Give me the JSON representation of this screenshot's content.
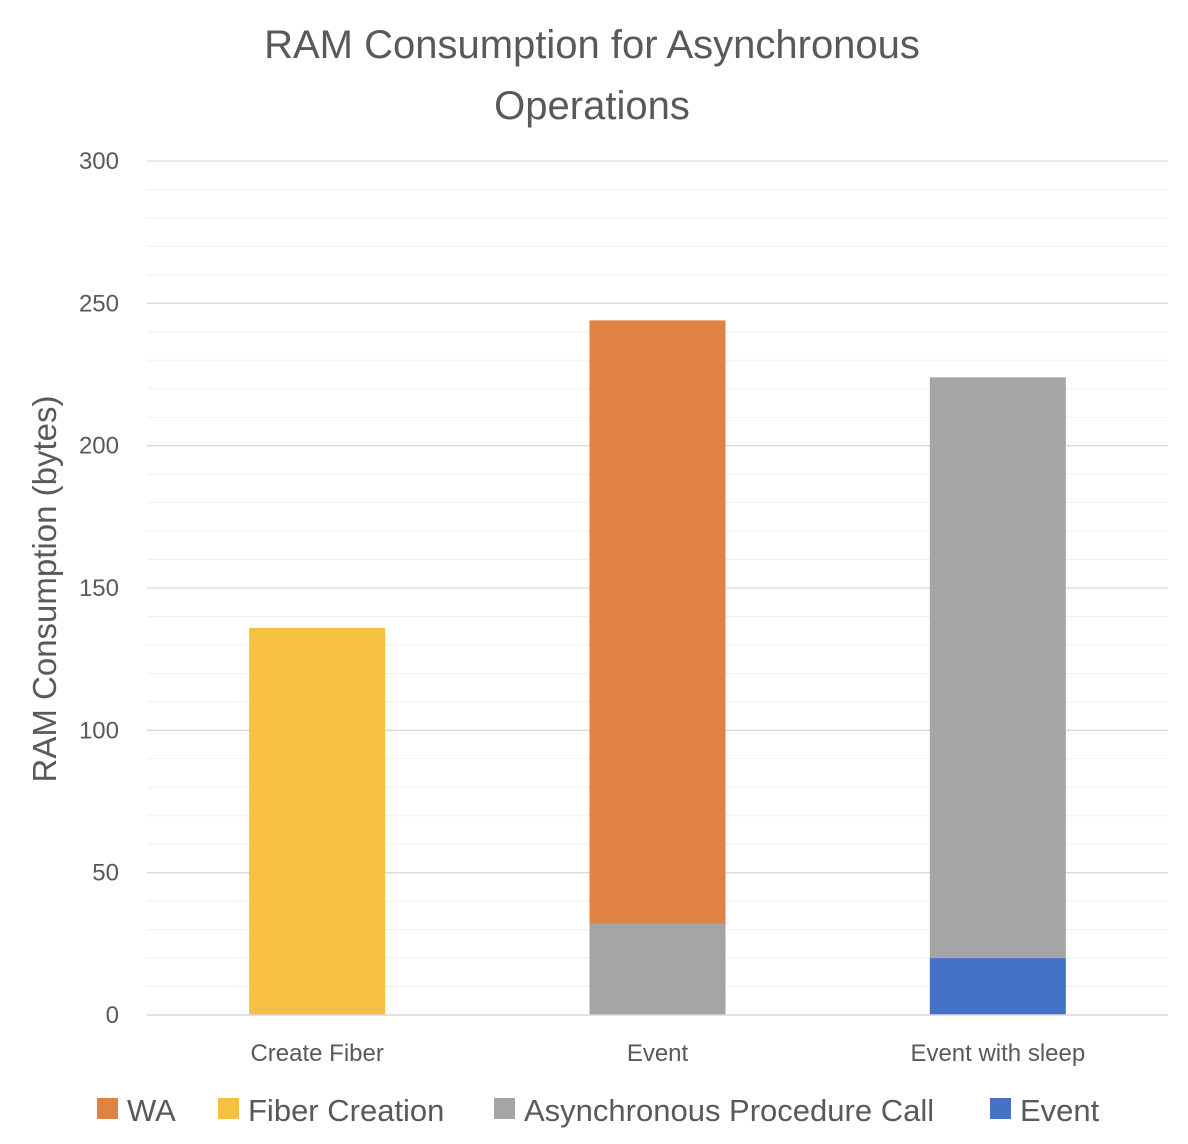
{
  "chart_data": {
    "type": "bar",
    "stacked": true,
    "title_lines": [
      "RAM Consumption for Asynchronous",
      "Operations"
    ],
    "xlabel": "",
    "ylabel": "RAM Consumption (bytes)",
    "ylim": [
      0,
      300
    ],
    "yticks": [
      0,
      50,
      100,
      150,
      200,
      250,
      300
    ],
    "minor_gridlines": true,
    "grid": true,
    "legend_position": "bottom",
    "categories": [
      "Create Fiber",
      "Event",
      "Event with sleep"
    ],
    "series": [
      {
        "name": "Event",
        "color": "#4472c4",
        "values": [
          0,
          0,
          20
        ]
      },
      {
        "name": "Asynchronous Procedure Call",
        "color": "#a5a5a5",
        "values": [
          0,
          32,
          204
        ]
      },
      {
        "name": "Fiber Creation",
        "color": "#f6c143",
        "values": [
          136,
          0,
          0
        ]
      },
      {
        "name": "WA",
        "color": "#df8244",
        "values": [
          0,
          212,
          0
        ]
      }
    ],
    "legend_order": [
      "WA",
      "Fiber Creation",
      "Asynchronous Procedure Call",
      "Event"
    ]
  }
}
